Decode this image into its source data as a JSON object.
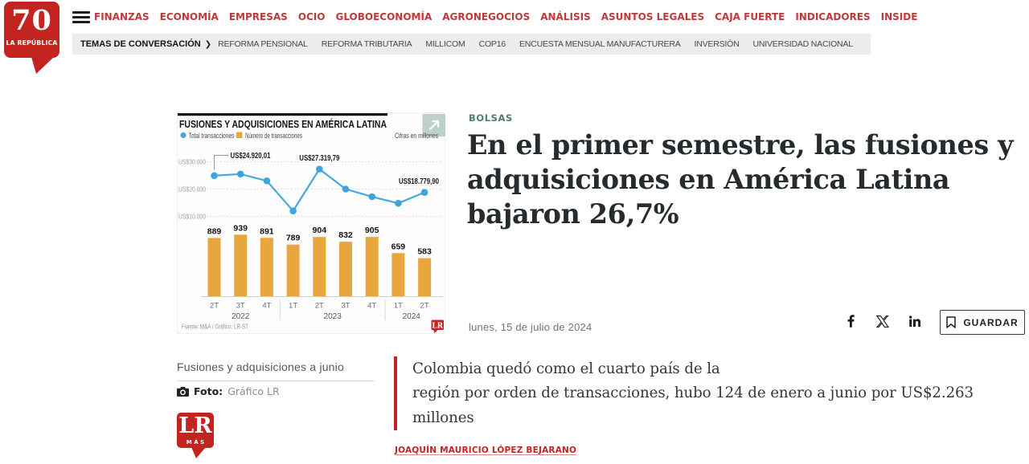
{
  "colors": {
    "brand_red": "#c42420",
    "category_teal": "#4a7d76",
    "line_blue": "#45a8de",
    "bar_orange": "#e7a73e"
  },
  "header": {
    "logo": {
      "number": "70",
      "name": "LA REPÚBLICA"
    },
    "menu_icon": "hamburger",
    "nav": [
      "FINANZAS",
      "ECONOMÍA",
      "EMPRESAS",
      "OCIO",
      "GLOBOECONOMÍA",
      "AGRONEGOCIOS",
      "ANÁLISIS",
      "ASUNTOS LEGALES",
      "CAJA FUERTE",
      "INDICADORES",
      "INSIDE"
    ],
    "topics_bar": {
      "title": "TEMAS DE CONVERSACIÓN",
      "chevron": "❯",
      "items": [
        "REFORMA PENSIONAL",
        "REFORMA TRIBUTARIA",
        "MILLICOM",
        "COP16",
        "ENCUESTA MENSUAL MANUFACTURERA",
        "INVERSIÓN",
        "UNIVERSIDAD NACIONAL"
      ]
    }
  },
  "article": {
    "category": "BOLSAS",
    "headline": "En el primer semestre, las fusiones y adquisiciones en América Latina bajaron 26,7%",
    "date": "lunes, 15 de julio de 2024",
    "social_icons": [
      "facebook",
      "x-twitter",
      "linkedin"
    ],
    "save_label": "GUARDAR",
    "save_icon": "bookmark",
    "photo_icon": "camera",
    "caption": "Fusiones y adquisiciones a junio",
    "photo_label": "Foto:",
    "photo_credit": "Gráfico LR",
    "lead": "Colombia quedó como el cuarto país de la\nregión por orden de transacciones, hubo 124 de enero a junio por US$2.263 millones",
    "author": "JOAQUÍN MAURICIO LÓPEZ BEJARANO",
    "logo_more": {
      "initials": "LR",
      "sub": "MÁS"
    }
  },
  "chart_data": {
    "type": "line+bar",
    "title": "FUSIONES Y ADQUISICIONES EN AMÉRICA LATINA",
    "units_note": "Cifras en millones",
    "expand_icon": "arrow-up-right",
    "legend": [
      {
        "name": "Total transacciones",
        "marker": "circle",
        "color": "#45a8de"
      },
      {
        "name": "Número de transacciones",
        "marker": "square",
        "color": "#e7a73e"
      }
    ],
    "x_labels": [
      "2T",
      "3T",
      "4T",
      "1T",
      "2T",
      "3T",
      "4T",
      "1T",
      "2T"
    ],
    "year_groups": [
      {
        "label": "2022",
        "from": 0,
        "to": 2
      },
      {
        "label": "2023",
        "from": 3,
        "to": 6
      },
      {
        "label": "2024",
        "from": 7,
        "to": 8
      }
    ],
    "y_ticks": [
      {
        "label": "US$30.000",
        "value": 30000
      },
      {
        "label": "US$20.000",
        "value": 20000
      },
      {
        "label": "US$10.000",
        "value": 10000
      }
    ],
    "line_series": {
      "name": "Total transacciones",
      "values": [
        24920.01,
        25500,
        23000,
        12000,
        27319.79,
        20000,
        17200,
        14800,
        18779.9
      ],
      "annotations": [
        {
          "index": 0,
          "label": "US$24.920,01",
          "style": "elbow"
        },
        {
          "index": 4,
          "label": "US$27.319,79",
          "style": "above"
        },
        {
          "index": 8,
          "label": "US$18.779,90",
          "style": "above"
        }
      ]
    },
    "bar_series": {
      "name": "Número de transacciones",
      "values": [
        889,
        939,
        891,
        789,
        904,
        832,
        905,
        659,
        583
      ]
    },
    "source": "Fuente: M&A / Gráfico: LR-ST",
    "watermark": "LR"
  }
}
